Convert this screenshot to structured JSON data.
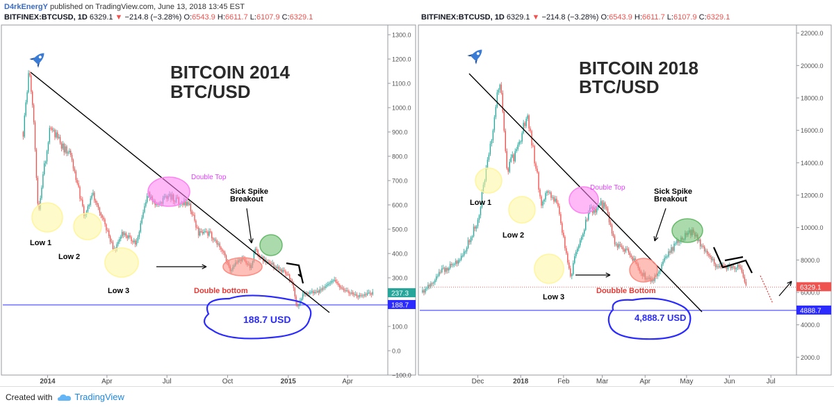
{
  "publish": {
    "author": "D4rkEnergY",
    "rest": " published on TradingView.com, June 13, 2018 13:45 EST"
  },
  "footer": {
    "created": "Created with",
    "brand": "TradingView"
  },
  "chart_data": [
    {
      "type": "candlestick",
      "symbol_line": {
        "symbol": "BITFINEX:BTCUSD, 1D",
        "last": "6329.1",
        "change": "−214.8 (−3.28%)",
        "open_label": "O:",
        "open": "6543.9",
        "high_label": "H:",
        "high": "6611.7",
        "low_label": "L:",
        "low": "6107.9",
        "close_label": "C:",
        "close": "6329.1"
      },
      "y_scale": "linear",
      "ylim": [
        -100,
        1340
      ],
      "y_ticks": [
        "1300.0",
        "1200.0",
        "1100.0",
        "1000.0",
        "900.0",
        "800.0",
        "700.0",
        "600.0",
        "500.0",
        "400.0",
        "300.0",
        "200.0",
        "100.0",
        "0.0",
        "−100.0"
      ],
      "x_ticks": [
        "2014",
        "Apr",
        "Jul",
        "Oct",
        "2015",
        "Apr"
      ],
      "price_labels": [
        {
          "value": 237.3,
          "text": "237.3",
          "color": "#26a69a"
        },
        {
          "value": 188.7,
          "text": "188.7",
          "color": "#2b2bff"
        }
      ],
      "series": [
        {
          "date": "2013-11-25",
          "close": 900
        },
        {
          "date": "2013-12-04",
          "close": 1147
        },
        {
          "date": "2013-12-10",
          "close": 1000
        },
        {
          "date": "2013-12-18",
          "close": 550
        },
        {
          "date": "2013-12-27",
          "close": 760
        },
        {
          "date": "2014-01-05",
          "close": 930
        },
        {
          "date": "2014-01-20",
          "close": 850
        },
        {
          "date": "2014-02-05",
          "close": 810
        },
        {
          "date": "2014-02-25",
          "close": 560
        },
        {
          "date": "2014-03-10",
          "close": 640
        },
        {
          "date": "2014-03-25",
          "close": 560
        },
        {
          "date": "2014-04-11",
          "close": 410
        },
        {
          "date": "2014-04-25",
          "close": 490
        },
        {
          "date": "2014-05-15",
          "close": 440
        },
        {
          "date": "2014-06-03",
          "close": 650
        },
        {
          "date": "2014-06-15",
          "close": 600
        },
        {
          "date": "2014-07-01",
          "close": 640
        },
        {
          "date": "2014-07-15",
          "close": 620
        },
        {
          "date": "2014-08-05",
          "close": 590
        },
        {
          "date": "2014-08-18",
          "close": 480
        },
        {
          "date": "2014-09-05",
          "close": 480
        },
        {
          "date": "2014-09-25",
          "close": 410
        },
        {
          "date": "2014-10-05",
          "close": 330
        },
        {
          "date": "2014-10-20",
          "close": 380
        },
        {
          "date": "2014-11-05",
          "close": 340
        },
        {
          "date": "2014-11-12",
          "close": 420
        },
        {
          "date": "2014-11-25",
          "close": 370
        },
        {
          "date": "2014-12-10",
          "close": 350
        },
        {
          "date": "2014-12-28",
          "close": 320
        },
        {
          "date": "2015-01-08",
          "close": 280
        },
        {
          "date": "2015-01-14",
          "close": 175
        },
        {
          "date": "2015-01-25",
          "close": 240
        },
        {
          "date": "2015-02-15",
          "close": 240
        },
        {
          "date": "2015-03-10",
          "close": 290
        },
        {
          "date": "2015-03-25",
          "close": 250
        },
        {
          "date": "2015-04-15",
          "close": 225
        },
        {
          "date": "2015-05-10",
          "close": 237
        }
      ],
      "annotations": {
        "title_line1": "BITCOIN 2014",
        "title_line2": "BTC/USD",
        "low1": "Low 1",
        "low2": "Low 2",
        "low3": "Low 3",
        "double_top": "Double Top",
        "spike_line1": "Sick Spike",
        "spike_line2": "Breakout",
        "double_bottom": "Double bottom",
        "support": "188.7 USD"
      },
      "colors": {
        "up": "#26a69a",
        "down": "#ef5350",
        "low": "#fff59d",
        "double_top": "#ff80f0",
        "bottom": "#ff8a80",
        "green": "#66bb6a",
        "support": "#2b2bff"
      }
    },
    {
      "type": "candlestick",
      "symbol_line": {
        "symbol": "BITFINEX:BTCUSD, 1D",
        "last": "6329.1",
        "change": "−214.8 (−3.28%)",
        "open_label": "O:",
        "open": "6543.9",
        "high_label": "H:",
        "high": "6611.7",
        "low_label": "L:",
        "low": "6107.9",
        "close_label": "C:",
        "close": "6329.1"
      },
      "y_scale": "linear",
      "ylim": [
        900,
        22500
      ],
      "y_ticks": [
        "22000.0",
        "20000.0",
        "18000.0",
        "16000.0",
        "14000.0",
        "12000.0",
        "10000.0",
        "8000.0",
        "6000.0",
        "4000.0",
        "2000.0"
      ],
      "x_ticks": [
        "Dec",
        "2018",
        "Feb",
        "Mar",
        "Apr",
        "May",
        "Jun",
        "Jul"
      ],
      "price_labels": [
        {
          "value": 6329.1,
          "text": "6329.1",
          "color": "#ef5350"
        },
        {
          "value": 4888.7,
          "text": "4888.7",
          "color": "#2b2bff"
        }
      ],
      "series": [
        {
          "date": "2017-10-22",
          "close": 6000
        },
        {
          "date": "2017-11-05",
          "close": 7300
        },
        {
          "date": "2017-11-20",
          "close": 8200
        },
        {
          "date": "2017-12-01",
          "close": 10500
        },
        {
          "date": "2017-12-10",
          "close": 15000
        },
        {
          "date": "2017-12-17",
          "close": 19300
        },
        {
          "date": "2017-12-22",
          "close": 13500
        },
        {
          "date": "2017-12-28",
          "close": 14500
        },
        {
          "date": "2018-01-06",
          "close": 17000
        },
        {
          "date": "2018-01-16",
          "close": 11500
        },
        {
          "date": "2018-01-20",
          "close": 12500
        },
        {
          "date": "2018-01-28",
          "close": 11200
        },
        {
          "date": "2018-02-06",
          "close": 6900
        },
        {
          "date": "2018-02-10",
          "close": 8500
        },
        {
          "date": "2018-02-20",
          "close": 11000
        },
        {
          "date": "2018-03-03",
          "close": 11500
        },
        {
          "date": "2018-03-10",
          "close": 9000
        },
        {
          "date": "2018-03-20",
          "close": 8500
        },
        {
          "date": "2018-04-01",
          "close": 6900
        },
        {
          "date": "2018-04-06",
          "close": 6700
        },
        {
          "date": "2018-04-15",
          "close": 8000
        },
        {
          "date": "2018-04-25",
          "close": 9300
        },
        {
          "date": "2018-05-05",
          "close": 9800
        },
        {
          "date": "2018-05-15",
          "close": 8500
        },
        {
          "date": "2018-05-24",
          "close": 7500
        },
        {
          "date": "2018-06-01",
          "close": 7500
        },
        {
          "date": "2018-06-08",
          "close": 7700
        },
        {
          "date": "2018-06-13",
          "close": 6329
        }
      ],
      "annotations": {
        "title_line1": "BITCOIN 2018",
        "title_line2": "BTC/USD",
        "low1": "Low 1",
        "low2": "Low 2",
        "low3": "Low 3",
        "double_top": "Double Top",
        "spike_line1": "Sick Spike",
        "spike_line2": "Breakout",
        "double_bottom": "Doubble Bottom",
        "support": "4,888.7 USD"
      },
      "colors": {
        "up": "#26a69a",
        "down": "#ef5350",
        "low": "#fff59d",
        "double_top": "#ff80f0",
        "bottom": "#ff8a80",
        "green": "#66bb6a",
        "support": "#2b2bff"
      }
    }
  ]
}
